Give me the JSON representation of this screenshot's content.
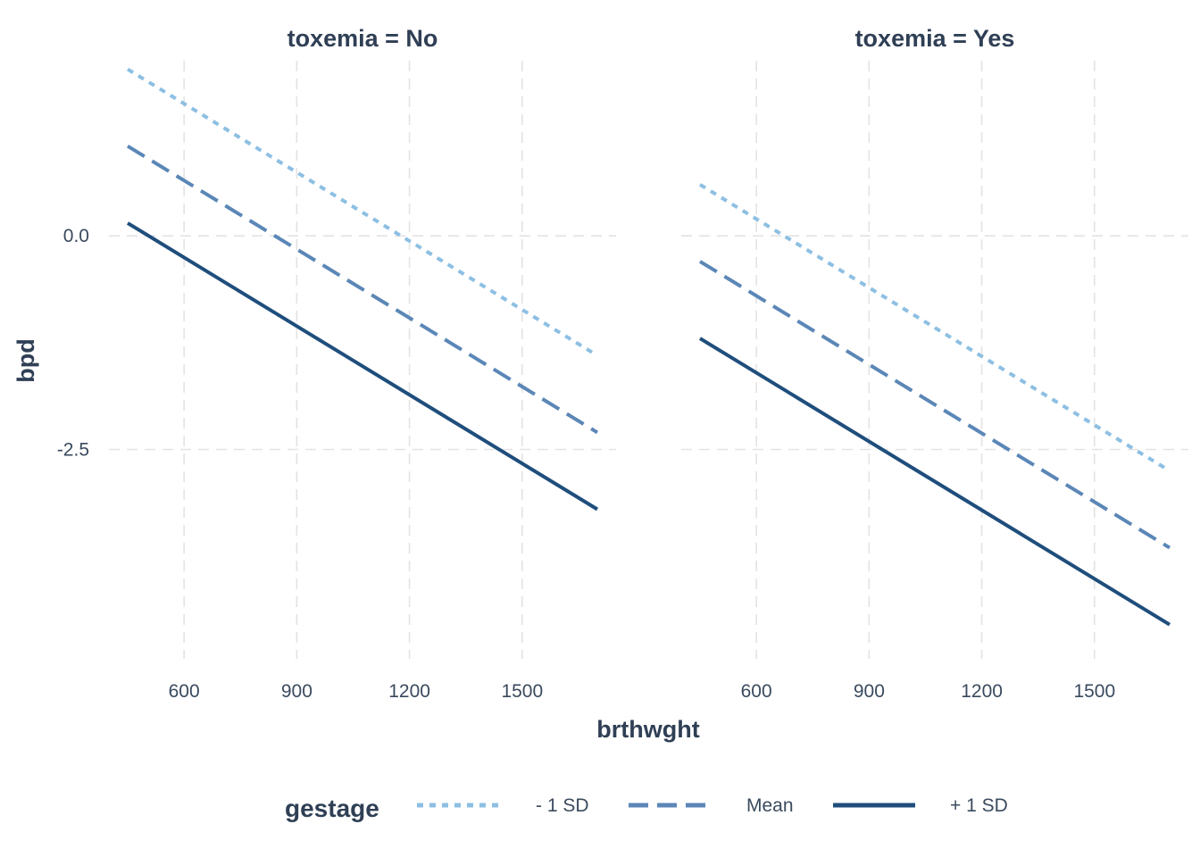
{
  "chart_data": {
    "type": "line",
    "facet_variable": "toxemia",
    "xlabel": "brthwght",
    "ylabel": "bpd",
    "x_ticks": [
      600,
      900,
      1200,
      1500
    ],
    "y_ticks": [
      0.0,
      -2.5
    ],
    "y_tick_labels": [
      "0.0",
      "-2.5"
    ],
    "xlim": [
      400,
      1750
    ],
    "ylim": [
      -4.95,
      2.05
    ],
    "grid": true,
    "legend": {
      "title": "gestage",
      "position": "bottom",
      "entries": [
        "- 1 SD",
        "Mean",
        "+ 1 SD"
      ]
    },
    "series_styles": [
      {
        "name": "- 1 SD",
        "color": "#8dbfe3",
        "dash": "dotted"
      },
      {
        "name": "Mean",
        "color": "#5b87b7",
        "dash": "dashed"
      },
      {
        "name": "+ 1 SD",
        "color": "#1f4e7c",
        "dash": "solid"
      }
    ],
    "panels": [
      {
        "strip": "toxemia = No",
        "series": [
          {
            "name": "- 1 SD",
            "x": [
              450,
              1700
            ],
            "y": [
              1.95,
              -1.4
            ]
          },
          {
            "name": "Mean",
            "x": [
              450,
              1700
            ],
            "y": [
              1.05,
              -2.3
            ]
          },
          {
            "name": "+ 1 SD",
            "x": [
              450,
              1700
            ],
            "y": [
              0.15,
              -3.2
            ]
          }
        ]
      },
      {
        "strip": "toxemia = Yes",
        "series": [
          {
            "name": "- 1 SD",
            "x": [
              450,
              1700
            ],
            "y": [
              0.6,
              -2.75
            ]
          },
          {
            "name": "Mean",
            "x": [
              450,
              1700
            ],
            "y": [
              -0.3,
              -3.65
            ]
          },
          {
            "name": "+ 1 SD",
            "x": [
              450,
              1700
            ],
            "y": [
              -1.2,
              -4.55
            ]
          }
        ]
      }
    ]
  }
}
